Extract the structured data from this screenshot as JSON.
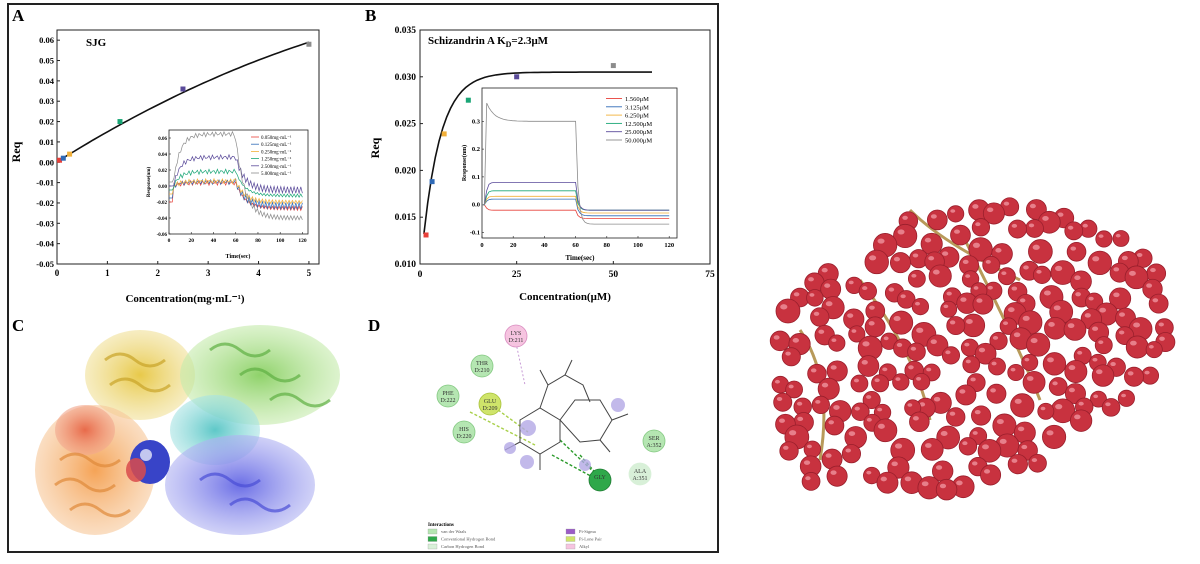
{
  "panels": {
    "A": {
      "letter": "A",
      "title": "SJG",
      "xlabel": "Concentration(mg·mL⁻¹)",
      "ylabel": "Req",
      "xticks": [
        "0",
        "1",
        "2",
        "3",
        "4",
        "5"
      ],
      "yticks": [
        "0.06",
        "0.05",
        "0.04",
        "0.03",
        "0.02",
        "0.01",
        "0.00",
        "-0.01",
        "-0.02",
        "-0.03",
        "-0.04",
        "-0.05"
      ],
      "inset": {
        "ylabel": "Response(nm)",
        "xlabel": "Time(sec)",
        "xticks": [
          "0",
          "20",
          "40",
          "60",
          "80",
          "100",
          "120"
        ],
        "yticks": [
          "0.06",
          "0.04",
          "0.02",
          "0.00",
          "-0.02",
          "-0.04",
          "-0.06"
        ],
        "legend": [
          "0.050mg·mL⁻¹",
          "0.125mg·mL⁻¹",
          "0.250mg·mL⁻¹",
          "1.250mg·mL⁻¹",
          "2.500mg·mL⁻¹",
          "5.000mg·mL⁻¹"
        ]
      }
    },
    "B": {
      "letter": "B",
      "title_main": "Schizandrin A  K",
      "title_sub": "D",
      "title_tail": "=2.3μM",
      "xlabel": "Concentration(μM)",
      "ylabel": "Req",
      "xticks": [
        "0",
        "25",
        "50",
        "75"
      ],
      "yticks": [
        "0.035",
        "0.030",
        "0.025",
        "0.020",
        "0.015",
        "0.010"
      ],
      "inset": {
        "ylabel": "Response(nm)",
        "xlabel": "Time(sec)",
        "xticks": [
          "0",
          "20",
          "40",
          "60",
          "80",
          "100",
          "120"
        ],
        "yticks": [
          "0.3",
          "0.2",
          "0.1",
          "0.0",
          "-0.1"
        ],
        "legend": [
          "1.560μM",
          "3.125μM",
          "6.250μM",
          "12.500μM",
          "25.000μM",
          "50.000μM"
        ]
      }
    },
    "C": {
      "letter": "C"
    },
    "D": {
      "letter": "D",
      "residues": [
        {
          "name": "LYS",
          "id": "D:211"
        },
        {
          "name": "THR",
          "id": "D:210"
        },
        {
          "name": "PHE",
          "id": "D:222"
        },
        {
          "name": "GLU",
          "id": "D:209"
        },
        {
          "name": "HIS",
          "id": "D:220"
        },
        {
          "name": "SER",
          "id": "A:352"
        },
        {
          "name": "ALA",
          "id": "A:351"
        },
        {
          "name": "GLY",
          "id": ""
        }
      ],
      "legend_title": "Interactions",
      "legend_items": [
        "van der Waals",
        "Conventional Hydrogen Bond",
        "Carbon Hydrogen Bond",
        "Pi-Sigma",
        "Pi-Lone Pair",
        "Alkyl"
      ]
    }
  },
  "colors": {
    "series6": [
      "#e8403a",
      "#2f6ab6",
      "#f2b03a",
      "#1aa676",
      "#5a4a9a",
      "#8c8c8c"
    ],
    "berry": "#c8323f"
  },
  "chart_data": [
    {
      "type": "scatter",
      "title": "SJG",
      "xlabel": "Concentration(mg·mL⁻¹)",
      "ylabel": "Req",
      "xlim": [
        0,
        5.2
      ],
      "ylim": [
        -0.05,
        0.065
      ],
      "points": [
        {
          "x": 0.05,
          "y": 0.001
        },
        {
          "x": 0.125,
          "y": 0.002
        },
        {
          "x": 0.25,
          "y": 0.004
        },
        {
          "x": 1.25,
          "y": 0.02
        },
        {
          "x": 2.5,
          "y": 0.036
        },
        {
          "x": 5.0,
          "y": 0.058
        }
      ],
      "fit_curve": true
    },
    {
      "type": "line",
      "title": "",
      "xlabel": "Time(sec)",
      "ylabel": "Response(nm)",
      "xlim": [
        0,
        125
      ],
      "ylim": [
        -0.06,
        0.07
      ],
      "series": [
        {
          "name": "0.050mg·mL⁻¹",
          "assoc": 0.004,
          "dissoc_end": -0.028
        },
        {
          "name": "0.125mg·mL⁻¹",
          "assoc": 0.005,
          "dissoc_end": -0.025
        },
        {
          "name": "0.250mg·mL⁻¹",
          "assoc": 0.006,
          "dissoc_end": -0.02
        },
        {
          "name": "1.250mg·mL⁻¹",
          "assoc": 0.018,
          "dissoc_end": -0.012
        },
        {
          "name": "2.500mg·mL⁻¹",
          "assoc": 0.036,
          "dissoc_end": -0.005
        },
        {
          "name": "5.000mg·mL⁻¹",
          "assoc": 0.06,
          "dissoc_end": -0.04
        }
      ]
    },
    {
      "type": "scatter",
      "title": "Schizandrin A KD=2.3μM",
      "xlabel": "Concentration(μM)",
      "ylabel": "Req",
      "xlim": [
        0,
        75
      ],
      "ylim": [
        0.01,
        0.035
      ],
      "points": [
        {
          "x": 1.56,
          "y": 0.0131
        },
        {
          "x": 3.125,
          "y": 0.0188
        },
        {
          "x": 6.25,
          "y": 0.0239
        },
        {
          "x": 12.5,
          "y": 0.0275
        },
        {
          "x": 25.0,
          "y": 0.03
        },
        {
          "x": 50.0,
          "y": 0.0312
        }
      ],
      "fit_curve": true
    },
    {
      "type": "line",
      "title": "",
      "xlabel": "Time(sec)",
      "ylabel": "Response(nm)",
      "xlim": [
        0,
        125
      ],
      "ylim": [
        -0.12,
        0.42
      ],
      "series": [
        {
          "name": "1.560μM",
          "assoc": -0.02,
          "dissoc_end": -0.05
        },
        {
          "name": "3.125μM",
          "assoc": 0.02,
          "dissoc_end": -0.04
        },
        {
          "name": "6.250μM",
          "assoc": 0.03,
          "dissoc_end": -0.03
        },
        {
          "name": "12.500μM",
          "assoc": 0.05,
          "dissoc_end": -0.02
        },
        {
          "name": "25.000μM",
          "assoc": 0.08,
          "dissoc_end": -0.02
        },
        {
          "name": "50.000μM",
          "assoc": 0.3,
          "dissoc_end": -0.07
        }
      ]
    }
  ]
}
